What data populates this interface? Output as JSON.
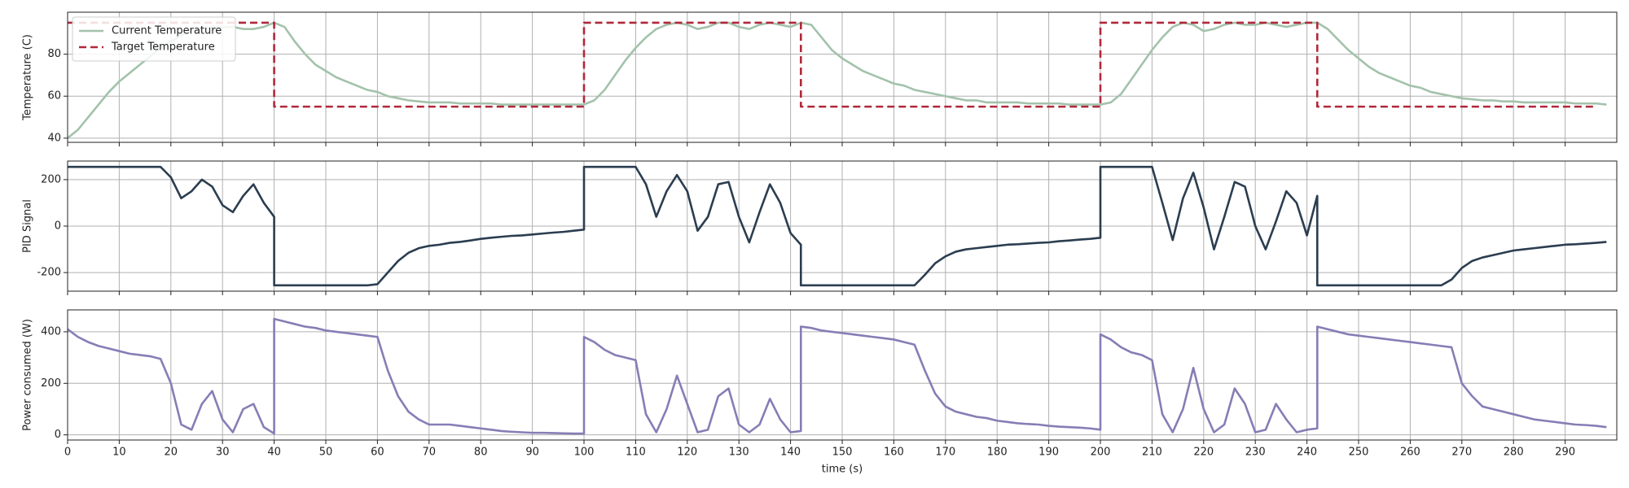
{
  "chart_data": {
    "type": "line",
    "xlabel": "time (s)",
    "xlim": [
      0,
      300
    ],
    "xticks": [
      0,
      10,
      20,
      30,
      40,
      50,
      60,
      70,
      80,
      90,
      100,
      110,
      120,
      130,
      140,
      150,
      160,
      170,
      180,
      190,
      200,
      210,
      220,
      230,
      240,
      250,
      260,
      270,
      280,
      290
    ],
    "grid": true,
    "x": [
      0,
      2,
      4,
      6,
      8,
      10,
      12,
      14,
      16,
      18,
      20,
      22,
      24,
      26,
      28,
      30,
      32,
      34,
      36,
      38,
      40,
      40,
      42,
      44,
      46,
      48,
      50,
      52,
      54,
      56,
      58,
      60,
      62,
      64,
      66,
      68,
      70,
      72,
      74,
      76,
      78,
      80,
      82,
      84,
      86,
      88,
      90,
      92,
      94,
      96,
      98,
      100,
      100,
      102,
      104,
      106,
      108,
      110,
      112,
      114,
      116,
      118,
      120,
      122,
      124,
      126,
      128,
      130,
      132,
      134,
      136,
      138,
      140,
      142,
      142,
      144,
      146,
      148,
      150,
      152,
      154,
      156,
      158,
      160,
      162,
      164,
      166,
      168,
      170,
      172,
      174,
      176,
      178,
      180,
      182,
      184,
      186,
      188,
      190,
      192,
      194,
      196,
      198,
      200,
      200,
      202,
      204,
      206,
      208,
      210,
      212,
      214,
      216,
      218,
      220,
      222,
      224,
      226,
      228,
      230,
      232,
      234,
      236,
      238,
      240,
      242,
      242,
      244,
      246,
      248,
      250,
      252,
      254,
      256,
      258,
      260,
      262,
      264,
      266,
      268,
      270,
      272,
      274,
      276,
      278,
      280,
      282,
      284,
      286,
      288,
      290,
      292,
      294,
      296,
      298
    ],
    "panels": [
      {
        "ylabel": "Temperature (C)",
        "ylim": [
          38,
          100
        ],
        "yticks": [
          40,
          60,
          80
        ],
        "legend": "upper left",
        "series": [
          {
            "name": "Current Temperature",
            "color": "#a3c2ab",
            "linestyle": "solid",
            "values": [
              40,
              44,
              50,
              56,
              62,
              67,
              71,
              75,
              79,
              83,
              86,
              89,
              91,
              92,
              93,
              93,
              93,
              92,
              92,
              93,
              95,
              95,
              93,
              86,
              80,
              75,
              72,
              69,
              67,
              65,
              63,
              62,
              60,
              59,
              58,
              57.5,
              57,
              57,
              57,
              56.5,
              56.5,
              56.5,
              56.5,
              56,
              56,
              56,
              56,
              56,
              56,
              56,
              56,
              56,
              56,
              58,
              63,
              70,
              77,
              83,
              88,
              92,
              94,
              95,
              94,
              92,
              93,
              95,
              95,
              93,
              92,
              94,
              95,
              94,
              93,
              95,
              95,
              94,
              88,
              82,
              78,
              75,
              72,
              70,
              68,
              66,
              65,
              63,
              62,
              61,
              60,
              59,
              58,
              58,
              57,
              57,
              57,
              57,
              56.5,
              56.5,
              56.5,
              56.5,
              56,
              56,
              56,
              56,
              56,
              57,
              61,
              68,
              75,
              82,
              88,
              93,
              95,
              94,
              91,
              92,
              94,
              95,
              94,
              94,
              95,
              94,
              93,
              94,
              95,
              95,
              95,
              92,
              87,
              82,
              78,
              74,
              71,
              69,
              67,
              65,
              64,
              62,
              61,
              60,
              59,
              58.5,
              58,
              58,
              57.5,
              57.5,
              57,
              57,
              57,
              57,
              57,
              56.5,
              56.5,
              56.5,
              56
            ]
          },
          {
            "name": "Target Temperature",
            "color": "#b0283a",
            "linestyle": "dashed",
            "values": [
              95,
              95,
              95,
              95,
              95,
              95,
              95,
              95,
              95,
              95,
              95,
              95,
              95,
              95,
              95,
              95,
              95,
              95,
              95,
              95,
              95,
              55,
              55,
              55,
              55,
              55,
              55,
              55,
              55,
              55,
              55,
              55,
              55,
              55,
              55,
              55,
              55,
              55,
              55,
              55,
              55,
              55,
              55,
              55,
              55,
              55,
              55,
              55,
              55,
              55,
              55,
              55,
              95,
              95,
              95,
              95,
              95,
              95,
              95,
              95,
              95,
              95,
              95,
              95,
              95,
              95,
              95,
              95,
              95,
              95,
              95,
              95,
              95,
              95,
              55,
              55,
              55,
              55,
              55,
              55,
              55,
              55,
              55,
              55,
              55,
              55,
              55,
              55,
              55,
              55,
              55,
              55,
              55,
              55,
              55,
              55,
              55,
              55,
              55,
              55,
              55,
              55,
              55,
              55,
              95,
              95,
              95,
              95,
              95,
              95,
              95,
              95,
              95,
              95,
              95,
              95,
              95,
              95,
              95,
              95,
              95,
              95,
              95,
              95,
              95,
              95,
              55,
              55,
              55,
              55,
              55,
              55,
              55,
              55,
              55,
              55,
              55,
              55,
              55,
              55,
              55,
              55,
              55,
              55,
              55,
              55,
              55,
              55,
              55,
              55,
              55,
              55,
              55,
              55
            ]
          }
        ]
      },
      {
        "ylabel": "PID Signal",
        "ylim": [
          -280,
          280
        ],
        "yticks": [
          -200,
          0,
          200
        ],
        "series": [
          {
            "name": "PID Signal",
            "color": "#2b3d50",
            "linestyle": "solid",
            "values": [
              255,
              255,
              255,
              255,
              255,
              255,
              255,
              255,
              255,
              255,
              210,
              120,
              150,
              200,
              170,
              90,
              60,
              130,
              180,
              100,
              40,
              -255,
              -255,
              -255,
              -255,
              -255,
              -255,
              -255,
              -255,
              -255,
              -255,
              -250,
              -200,
              -150,
              -115,
              -95,
              -85,
              -80,
              -72,
              -68,
              -62,
              -55,
              -50,
              -46,
              -42,
              -40,
              -36,
              -32,
              -28,
              -25,
              -20,
              -15,
              255,
              255,
              255,
              255,
              255,
              255,
              180,
              40,
              150,
              220,
              150,
              -20,
              40,
              180,
              190,
              40,
              -70,
              60,
              180,
              100,
              -30,
              -80,
              -255,
              -255,
              -255,
              -255,
              -255,
              -255,
              -255,
              -255,
              -255,
              -255,
              -255,
              -255,
              -210,
              -160,
              -130,
              -110,
              -100,
              -95,
              -90,
              -85,
              -80,
              -78,
              -75,
              -72,
              -70,
              -65,
              -62,
              -58,
              -55,
              -50,
              255,
              255,
              255,
              255,
              255,
              255,
              100,
              -60,
              120,
              230,
              80,
              -100,
              40,
              190,
              170,
              0,
              -100,
              20,
              150,
              100,
              -40,
              130,
              -255,
              -255,
              -255,
              -255,
              -255,
              -255,
              -255,
              -255,
              -255,
              -255,
              -255,
              -255,
              -255,
              -230,
              -180,
              -150,
              -135,
              -125,
              -115,
              -105,
              -100,
              -95,
              -90,
              -85,
              -80,
              -78,
              -75,
              -72,
              -68
            ]
          }
        ]
      },
      {
        "ylabel": "Power consumed (W)",
        "ylim": [
          -20,
          485
        ],
        "yticks": [
          0,
          200,
          400
        ],
        "series": [
          {
            "name": "Power consumed",
            "color": "#877db5",
            "linestyle": "solid",
            "values": [
              410,
              380,
              360,
              345,
              335,
              325,
              315,
              310,
              305,
              295,
              200,
              40,
              20,
              120,
              170,
              60,
              10,
              100,
              120,
              30,
              5,
              450,
              440,
              430,
              420,
              415,
              405,
              400,
              395,
              390,
              385,
              380,
              250,
              150,
              90,
              60,
              40,
              40,
              40,
              35,
              30,
              25,
              20,
              15,
              12,
              10,
              8,
              8,
              7,
              6,
              5,
              5,
              380,
              360,
              330,
              310,
              300,
              290,
              80,
              10,
              100,
              230,
              120,
              10,
              20,
              150,
              180,
              40,
              10,
              40,
              140,
              60,
              10,
              15,
              420,
              415,
              405,
              400,
              395,
              390,
              385,
              380,
              375,
              370,
              360,
              350,
              250,
              160,
              110,
              90,
              80,
              70,
              65,
              55,
              50,
              45,
              42,
              40,
              35,
              32,
              30,
              28,
              25,
              20,
              390,
              370,
              340,
              320,
              310,
              290,
              80,
              10,
              100,
              260,
              100,
              10,
              40,
              180,
              120,
              10,
              20,
              120,
              60,
              10,
              20,
              25,
              420,
              410,
              400,
              390,
              385,
              380,
              375,
              370,
              365,
              360,
              355,
              350,
              345,
              340,
              200,
              150,
              110,
              100,
              90,
              80,
              70,
              60,
              55,
              50,
              45,
              40,
              38,
              35,
              30
            ]
          }
        ]
      }
    ]
  }
}
